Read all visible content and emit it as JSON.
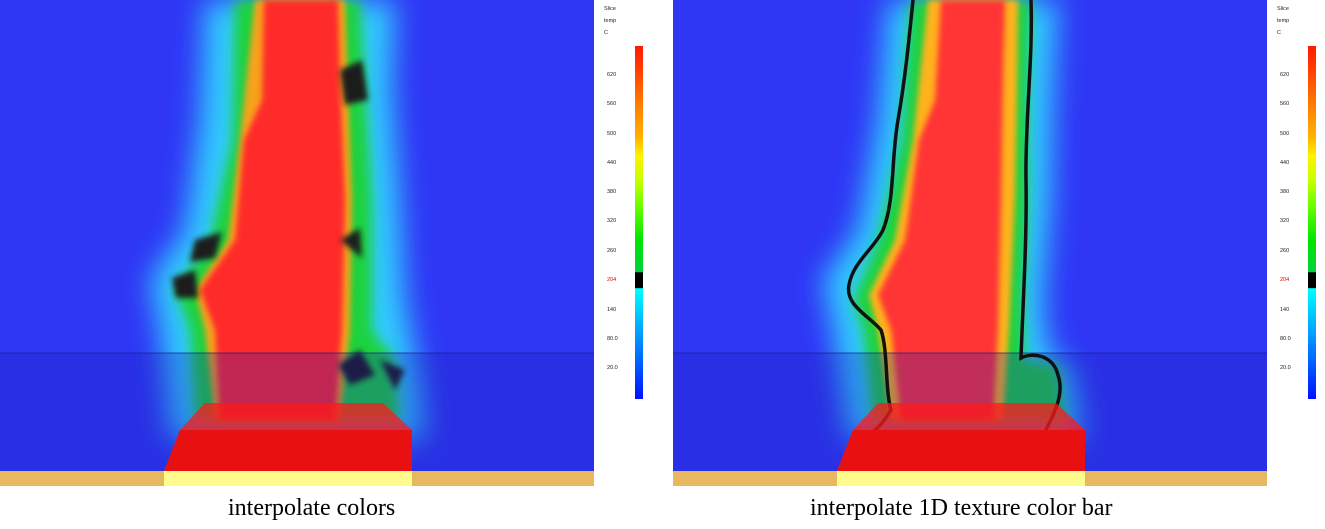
{
  "colorbar": {
    "header": [
      "Slice",
      "temp",
      "C"
    ],
    "ticks": [
      "620",
      "560",
      "500",
      "440",
      "380",
      "320",
      "260",
      "204",
      "140",
      "80.0",
      "20.0"
    ],
    "highlight_tick": "204",
    "highlight_color": "#e00000"
  },
  "panels": [
    {
      "caption": "interpolate colors",
      "mode": "interpolate-colors"
    },
    {
      "caption": "interpolate 1D texture color bar",
      "mode": "interpolate-1d-texture"
    }
  ],
  "colors": {
    "background_blue": "#2f37f5",
    "lower_blue": "#2829e0",
    "plume_red": "#ff2c2c",
    "fire_red": "#e81010",
    "floor_tan": "#e8b860",
    "burner_yellow": "#fffb8c",
    "contour_line": "#111111"
  }
}
